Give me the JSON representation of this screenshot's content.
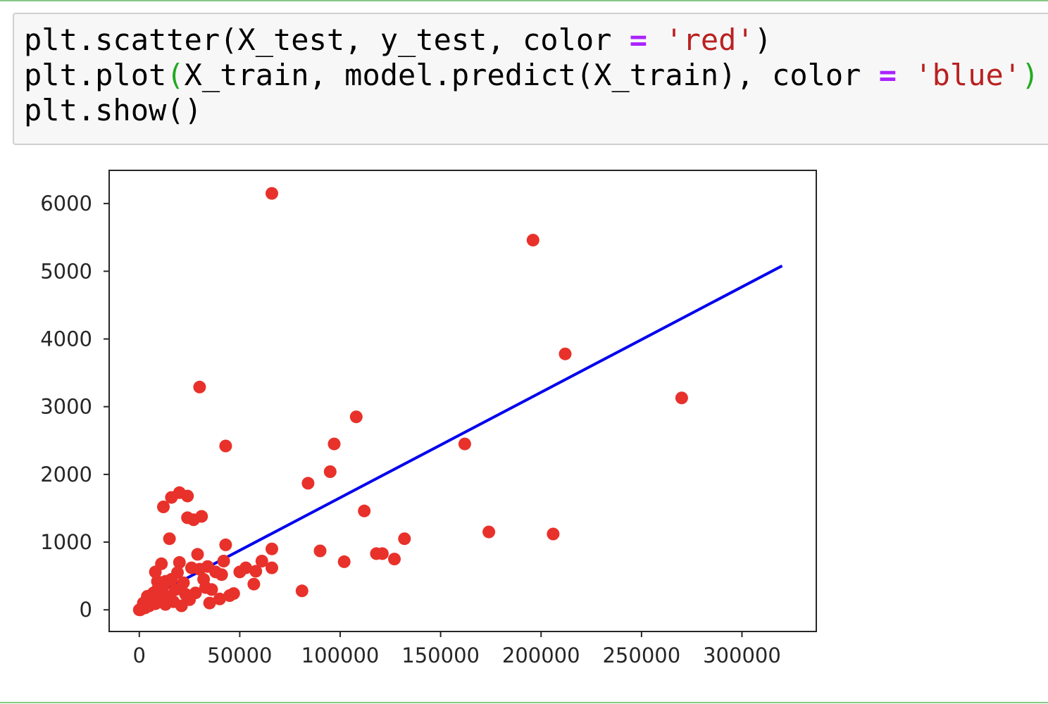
{
  "code_cell": {
    "lines": [
      [
        {
          "text": "plt.scatter(X_test, y_test, color ",
          "kind": "plain"
        },
        {
          "text": "=",
          "kind": "op"
        },
        {
          "text": " ",
          "kind": "plain"
        },
        {
          "text": "'red'",
          "kind": "str"
        },
        {
          "text": ")",
          "kind": "plain"
        }
      ],
      [
        {
          "text": "plt.plot",
          "kind": "plain"
        },
        {
          "text": "(",
          "kind": "bracket"
        },
        {
          "text": "X_train, model.predict(X_train), color ",
          "kind": "plain"
        },
        {
          "text": "=",
          "kind": "op"
        },
        {
          "text": " ",
          "kind": "plain"
        },
        {
          "text": "'blue'",
          "kind": "str"
        },
        {
          "text": ")",
          "kind": "bracket"
        }
      ],
      [
        {
          "text": "plt.show()",
          "kind": "plain"
        }
      ]
    ]
  },
  "colors": {
    "scatter": "#e8312a",
    "line": "#0000ee",
    "cell_background": "#f7f7f7",
    "cell_border": "#cfcfcf",
    "notebook_border": "#86c785",
    "operator": "#aa22ff",
    "string": "#ba2121",
    "bracket_match": "#22aa22"
  },
  "chart_data": {
    "type": "scatter",
    "title": "",
    "xlabel": "",
    "ylabel": "",
    "xlim": [
      -15000,
      337000
    ],
    "ylim": [
      -320,
      6490
    ],
    "xticks": [
      0,
      50000,
      100000,
      150000,
      200000,
      250000,
      300000
    ],
    "xtick_labels": [
      "0",
      "50000",
      "100000",
      "150000",
      "200000",
      "250000",
      "300000"
    ],
    "yticks": [
      0,
      1000,
      2000,
      3000,
      4000,
      5000,
      6000
    ],
    "ytick_labels": [
      "0",
      "1000",
      "2000",
      "3000",
      "4000",
      "5000",
      "6000"
    ],
    "grid": false,
    "series": [
      {
        "kind": "scatter",
        "color": "red",
        "points": [
          [
            66000,
            6150
          ],
          [
            196000,
            5460
          ],
          [
            212000,
            3780
          ],
          [
            270000,
            3130
          ],
          [
            30000,
            3290
          ],
          [
            108000,
            2850
          ],
          [
            43000,
            2420
          ],
          [
            97000,
            2450
          ],
          [
            162000,
            2450
          ],
          [
            95000,
            2040
          ],
          [
            84000,
            1870
          ],
          [
            112000,
            1460
          ],
          [
            174000,
            1150
          ],
          [
            206000,
            1120
          ],
          [
            132000,
            1050
          ],
          [
            90000,
            870
          ],
          [
            118000,
            830
          ],
          [
            121000,
            830
          ],
          [
            127000,
            750
          ],
          [
            102000,
            710
          ],
          [
            81000,
            280
          ],
          [
            66000,
            900
          ],
          [
            66000,
            620
          ],
          [
            61000,
            720
          ],
          [
            58000,
            570
          ],
          [
            57000,
            380
          ],
          [
            53000,
            620
          ],
          [
            50000,
            560
          ],
          [
            43000,
            960
          ],
          [
            42000,
            720
          ],
          [
            41000,
            520
          ],
          [
            40000,
            160
          ],
          [
            45000,
            210
          ],
          [
            36000,
            300
          ],
          [
            35000,
            100
          ],
          [
            34000,
            640
          ],
          [
            32000,
            450
          ],
          [
            31000,
            1380
          ],
          [
            29000,
            820
          ],
          [
            27000,
            1330
          ],
          [
            24000,
            1360
          ],
          [
            24000,
            1680
          ],
          [
            20000,
            1730
          ],
          [
            16000,
            1660
          ],
          [
            15000,
            1050
          ],
          [
            12000,
            1520
          ],
          [
            20000,
            700
          ],
          [
            11000,
            680
          ],
          [
            8000,
            560
          ],
          [
            26000,
            620
          ],
          [
            28000,
            250
          ],
          [
            25000,
            150
          ],
          [
            22000,
            400
          ],
          [
            21000,
            60
          ],
          [
            18000,
            300
          ],
          [
            17000,
            120
          ],
          [
            16000,
            450
          ],
          [
            14000,
            200
          ],
          [
            13000,
            80
          ],
          [
            12000,
            350
          ],
          [
            10000,
            180
          ],
          [
            9000,
            420
          ],
          [
            8000,
            90
          ],
          [
            7000,
            250
          ],
          [
            6000,
            130
          ],
          [
            5000,
            60
          ],
          [
            4000,
            200
          ],
          [
            3000,
            30
          ],
          [
            2000,
            100
          ],
          [
            1000,
            10
          ],
          [
            500,
            0
          ],
          [
            0,
            0
          ],
          [
            38000,
            560
          ],
          [
            30000,
            600
          ],
          [
            19000,
            550
          ],
          [
            13000,
            420
          ],
          [
            47000,
            240
          ],
          [
            33000,
            330
          ],
          [
            23000,
            230
          ],
          [
            9000,
            300
          ]
        ]
      },
      {
        "kind": "line",
        "color": "blue",
        "x": [
          0,
          320000
        ],
        "y": [
          100,
          5080
        ]
      }
    ]
  }
}
